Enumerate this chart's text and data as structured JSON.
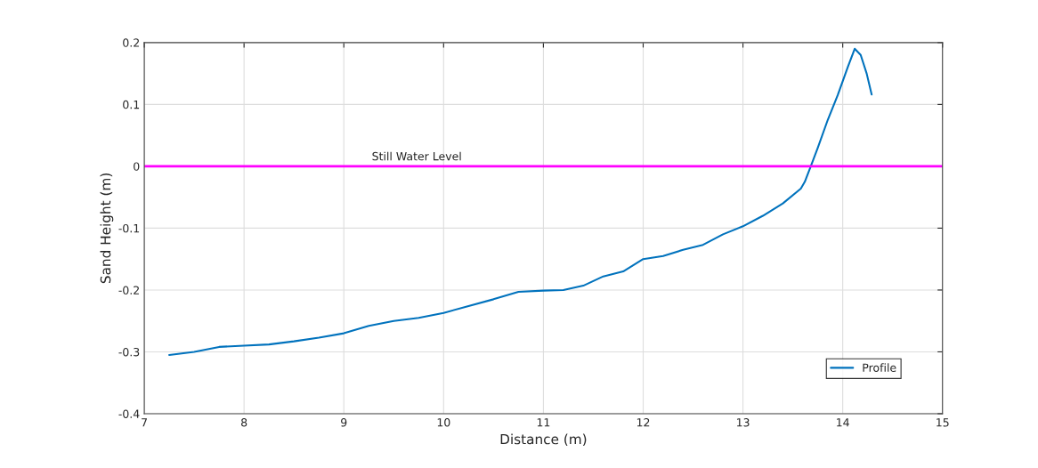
{
  "chart_data": {
    "type": "line",
    "xlabel": "Distance (m)",
    "ylabel": "Sand Height (m)",
    "xlim": [
      7,
      15
    ],
    "xticks": [
      7,
      8,
      9,
      10,
      11,
      12,
      13,
      14,
      15
    ],
    "ylim": [
      -0.4,
      0.2
    ],
    "yticks": [
      -0.4,
      -0.3,
      -0.2,
      -0.1,
      0,
      0.1,
      0.2
    ],
    "grid": true,
    "legend": "bottom right",
    "ref_lines": [
      {
        "axis": "y",
        "value": 0,
        "label": "Still Water Level",
        "color": "#ff00ff"
      }
    ],
    "series": [
      {
        "name": "Profile",
        "color": "#0072bd",
        "x": [
          7.25,
          7.5,
          7.75,
          8.0,
          8.25,
          8.5,
          8.75,
          9.0,
          9.25,
          9.5,
          9.75,
          10.0,
          10.25,
          10.5,
          10.75,
          11.0,
          11.2,
          11.4,
          11.6,
          11.8,
          12.0,
          12.2,
          12.4,
          12.6,
          12.8,
          13.0,
          13.2,
          13.4,
          13.58,
          13.62,
          13.68,
          13.75,
          13.85,
          13.95,
          14.05,
          14.12,
          14.18,
          14.24,
          14.29
        ],
        "values": [
          -0.305,
          -0.3,
          -0.292,
          -0.29,
          -0.288,
          -0.283,
          -0.277,
          -0.27,
          -0.258,
          -0.25,
          -0.245,
          -0.237,
          -0.226,
          -0.215,
          -0.203,
          -0.201,
          -0.2,
          -0.193,
          -0.178,
          -0.17,
          -0.15,
          -0.145,
          -0.135,
          -0.127,
          -0.11,
          -0.097,
          -0.08,
          -0.06,
          -0.036,
          -0.025,
          0.0,
          0.03,
          0.075,
          0.115,
          0.16,
          0.19,
          0.18,
          0.15,
          0.116
        ]
      }
    ]
  }
}
